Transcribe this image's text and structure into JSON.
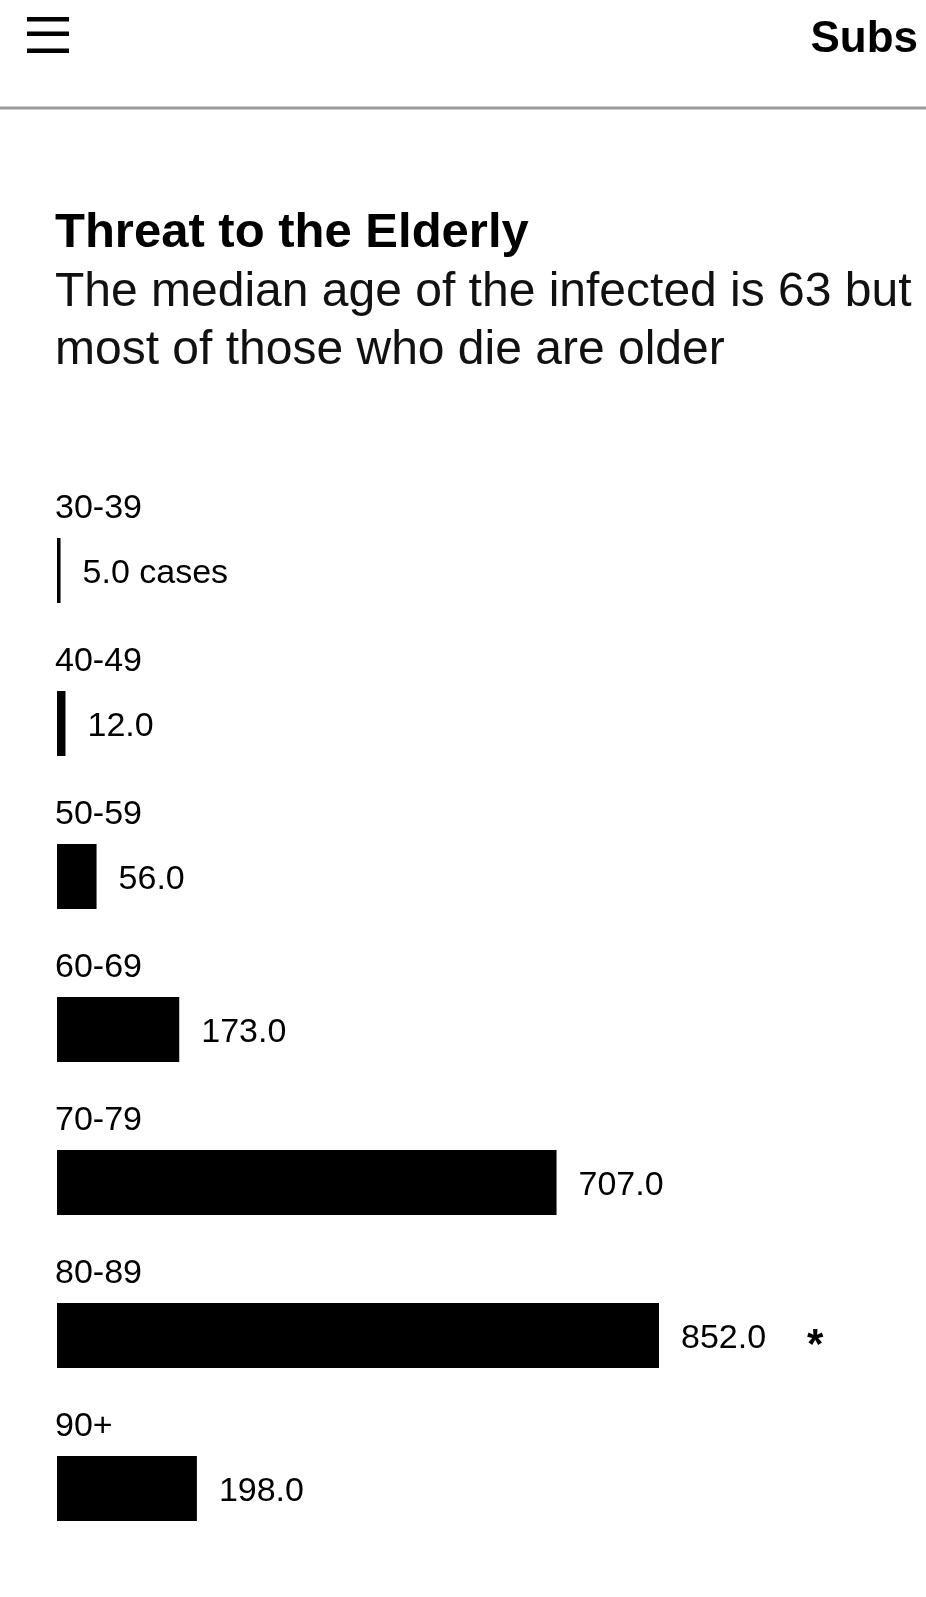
{
  "chart_data": {
    "type": "bar",
    "orientation": "horizontal",
    "title": "Threat to the Elderly",
    "subtitle": "The median age of the infected is 63 but most of those who die are older",
    "categories": [
      "30-39",
      "40-49",
      "50-59",
      "60-69",
      "70-79",
      "80-89",
      "90+"
    ],
    "values": [
      5,
      12,
      56,
      173,
      707,
      852,
      198
    ],
    "value_labels": [
      "5.0 cases",
      "12.0",
      "56.0",
      "173.0",
      "707.0",
      "852.0",
      "198.0"
    ],
    "color": "#000000",
    "annotations": [
      "Subs",
      "*"
    ]
  }
}
